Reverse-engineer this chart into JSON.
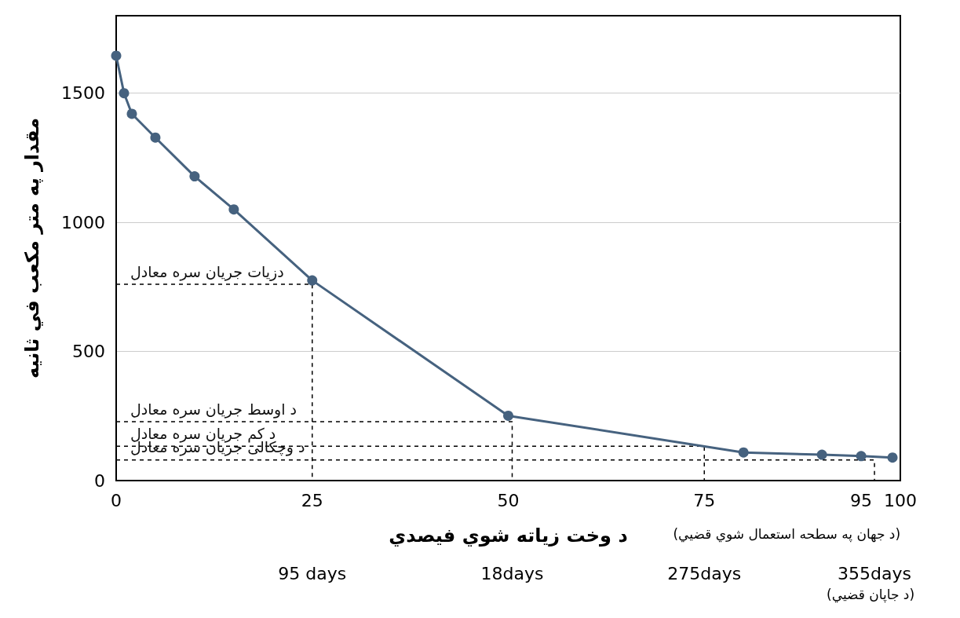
{
  "chart_data": {
    "type": "line",
    "xlabel": "د وخت زیاته شوي فیصدي",
    "ylabel": "مقدار په متر مکعب في ثانیه",
    "x": [
      0,
      1,
      2,
      5,
      10,
      15,
      25,
      50,
      80,
      90,
      95,
      99
    ],
    "series": [
      {
        "color": "#46627f",
        "values": [
          1645,
          1500,
          1420,
          1328,
          1178,
          1050,
          775,
          251,
          109,
          100,
          95,
          89
        ]
      },
      {
        "name": "دزيات جريان سره معادل",
        "color": "#000000",
        "line_style": "dashed",
        "marker": "none",
        "x": [
          0,
          25,
          25
        ],
        "values": [
          760,
          760,
          0
        ]
      },
      {
        "name": "د اوسط جريان سره معادل",
        "color": "#000000",
        "line_style": "dashed",
        "marker": "none",
        "x": [
          0,
          50.5,
          50.5
        ],
        "values": [
          228,
          228,
          0
        ]
      },
      {
        "name": "د کم جريان سره معادل",
        "color": "#000000",
        "line_style": "dashed",
        "marker": "none",
        "x": [
          0,
          75,
          75
        ],
        "values": [
          133,
          133,
          0
        ]
      },
      {
        "name": "د وچکالی جريان سره معادل",
        "color": "#000000",
        "line_style": "dashed",
        "marker": "none",
        "x": [
          0,
          96.7,
          96.7
        ],
        "values": [
          80,
          80,
          0
        ]
      }
    ],
    "xlim": [
      0,
      100
    ],
    "xticks": [
      0,
      25,
      50,
      75,
      95,
      100
    ],
    "ylim": [
      0,
      1800
    ],
    "yticks": [
      0,
      500,
      1000,
      1500
    ],
    "grid": "y",
    "marker": "circle",
    "line_style": "solid",
    "annotations": [
      "(د جهان په سطحه استعمال شوي قضيي)",
      "95 days",
      "18days",
      "275days",
      "355days",
      "(د جاپان قضيي)"
    ]
  }
}
